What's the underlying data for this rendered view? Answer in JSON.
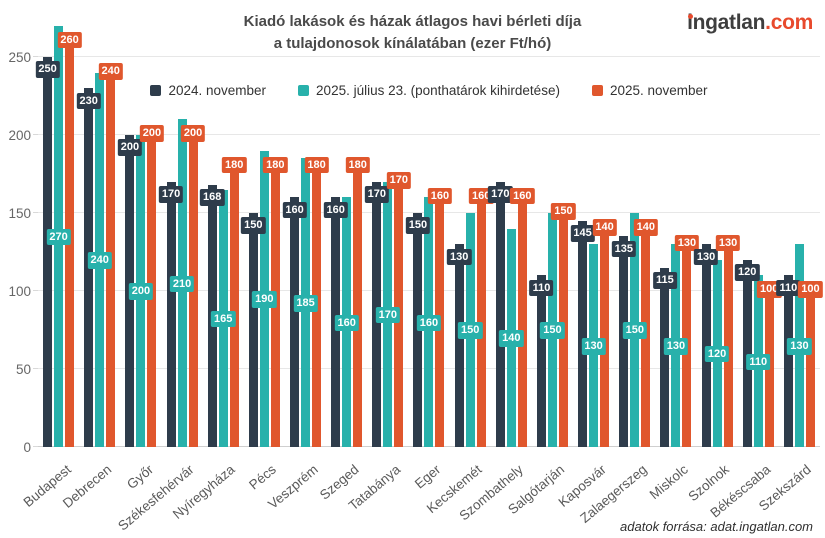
{
  "header": {
    "title_line1": "Kiadó lakások és házak átlagos havi bérleti díja",
    "title_line2": "a tulajdonosok kínálatában (ezer Ft/hó)",
    "logo": {
      "name": "ingatlan",
      "tld": ".com",
      "accent_color": "#e84a2d"
    }
  },
  "source_note": "adatok forrása: adat.ingatlan.com",
  "chart_data": {
    "type": "bar",
    "title": "Kiadó lakások és házak átlagos havi bérleti díja a tulajdonosok kínálatában (ezer Ft/hó)",
    "xlabel": "",
    "ylabel": "",
    "ylim": [
      0,
      250
    ],
    "yticks": [
      0,
      50,
      100,
      150,
      200,
      250
    ],
    "grid": true,
    "legend_position": "top",
    "background": "#ffffff",
    "categories": [
      "Budapest",
      "Debrecen",
      "Győr",
      "Székesfehérvár",
      "Nyíregyháza",
      "Pécs",
      "Veszprém",
      "Szeged",
      "Tatabánya",
      "Eger",
      "Kecskemét",
      "Szombathely",
      "Salgótarján",
      "Kaposvár",
      "Zalaegerszeg",
      "Miskolc",
      "Szolnok",
      "Békéscsaba",
      "Szekszárd"
    ],
    "series": [
      {
        "name": "2024. november",
        "color": "#2e3c4b",
        "values": [
          250,
          230,
          200,
          170,
          168,
          150,
          160,
          160,
          170,
          150,
          130,
          170,
          110,
          145,
          135,
          115,
          130,
          120,
          110
        ]
      },
      {
        "name": "2025. július 23. (ponthatárok kihirdetése)",
        "color": "#28b1ab",
        "values": [
          270,
          240,
          200,
          210,
          165,
          190,
          185,
          160,
          170,
          160,
          150,
          140,
          150,
          130,
          150,
          130,
          120,
          110,
          130
        ]
      },
      {
        "name": "2025. november",
        "color": "#e0572d",
        "values": [
          260,
          240,
          200,
          200,
          180,
          180,
          180,
          180,
          170,
          160,
          160,
          160,
          150,
          140,
          140,
          130,
          130,
          100,
          100
        ]
      }
    ]
  }
}
